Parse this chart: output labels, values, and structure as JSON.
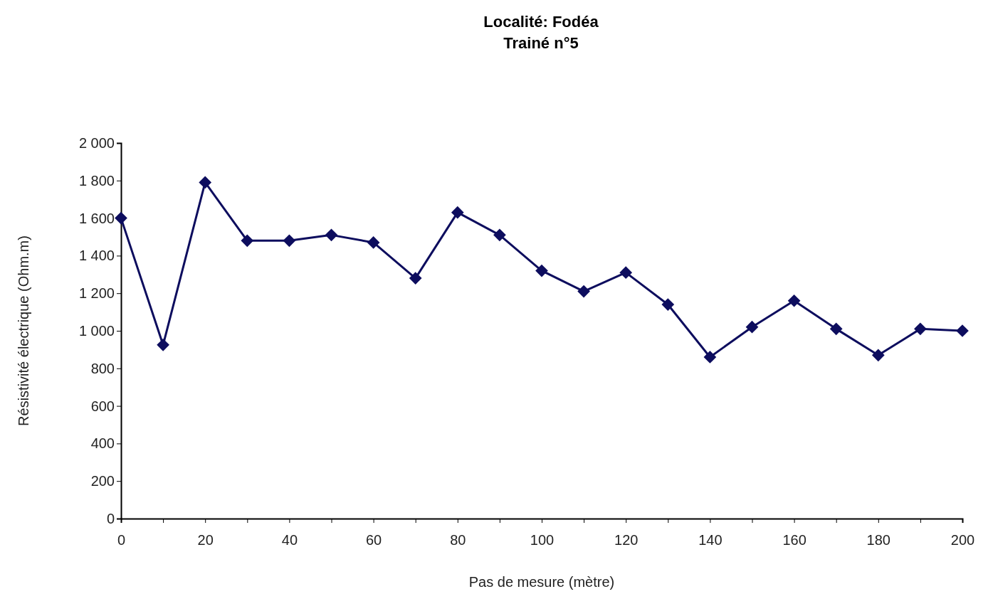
{
  "chart_data": {
    "type": "line",
    "title": "Localité: Fodéa",
    "subtitle": "Trainé n°5",
    "xlabel": "Pas de mesure (mètre)",
    "ylabel": "Résistivité électrique (Ohm.m)",
    "x": [
      0,
      10,
      20,
      30,
      40,
      50,
      60,
      70,
      80,
      90,
      100,
      110,
      120,
      130,
      140,
      150,
      160,
      170,
      180,
      190,
      200
    ],
    "series": [
      {
        "color": "#0d0d5e",
        "values": [
          1600,
          925,
          1790,
          1480,
          1480,
          1510,
          1470,
          1280,
          1630,
          1510,
          1320,
          1210,
          1310,
          1140,
          860,
          1020,
          1160,
          1010,
          870,
          1010,
          1000
        ]
      }
    ],
    "xlim": [
      0,
      200
    ],
    "xticks": [
      0,
      {
        "value": 10,
        "label": null
      },
      20,
      {
        "value": 30,
        "label": null
      },
      40,
      {
        "value": 50,
        "label": null
      },
      60,
      {
        "value": 70,
        "label": null
      },
      80,
      {
        "value": 90,
        "label": null
      },
      100,
      {
        "value": 110,
        "label": null
      },
      120,
      {
        "value": 130,
        "label": null
      },
      140,
      {
        "value": 150,
        "label": null
      },
      160,
      {
        "value": 170,
        "label": null
      },
      180,
      {
        "value": 190,
        "label": null
      },
      200
    ],
    "ylim": [
      0,
      2000
    ],
    "yticks": [
      0,
      200,
      400,
      600,
      800,
      {
        "value": 1000,
        "label": "1 000"
      },
      {
        "value": 1200,
        "label": "1 200"
      },
      {
        "value": 1400,
        "label": "1 400"
      },
      {
        "value": 1600,
        "label": "1 600"
      },
      {
        "value": 1800,
        "label": "1 800"
      },
      {
        "value": 2000,
        "label": "2 000"
      }
    ],
    "grid": false,
    "marker": "diamond",
    "line_style": "solid"
  }
}
